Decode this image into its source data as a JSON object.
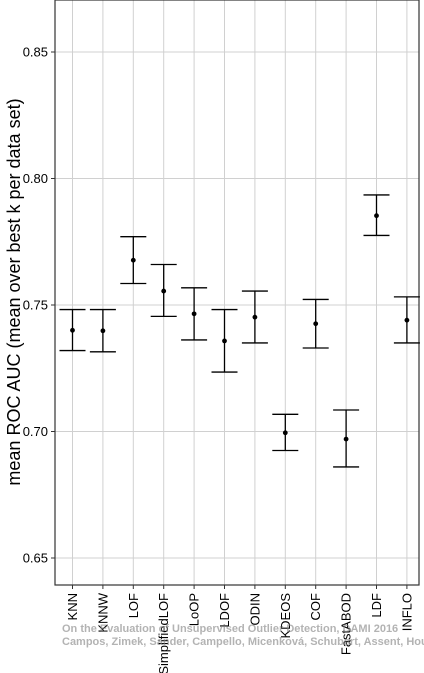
{
  "chart_data": {
    "type": "scatter",
    "ylabel": "mean ROC AUC (mean over best k per data set)",
    "xlabel": "",
    "ylim": [
      0.64,
      0.87
    ],
    "yticks": [
      0.65,
      0.7,
      0.75,
      0.8,
      0.85
    ],
    "ytick_labels": [
      "0.65",
      "0.70",
      "0.75",
      "0.80",
      "0.85"
    ],
    "grid": true,
    "categories": [
      "KNN",
      "KNNW",
      "LOF",
      "SimplifiedLOF",
      "LoOP",
      "LDOF",
      "ODIN",
      "KDEOS",
      "COF",
      "FastABOD",
      "LDF",
      "INFLO"
    ],
    "series": [
      {
        "values": [
          0.74,
          0.7398,
          0.7677,
          0.7555,
          0.7465,
          0.7358,
          0.7452,
          0.6995,
          0.7426,
          0.697,
          0.7853,
          0.744
        ],
        "lower": [
          0.732,
          0.7315,
          0.7585,
          0.7455,
          0.7362,
          0.7235,
          0.735,
          0.6925,
          0.733,
          0.686,
          0.7775,
          0.735
        ],
        "upper": [
          0.7482,
          0.7482,
          0.777,
          0.766,
          0.7568,
          0.7482,
          0.7555,
          0.7068,
          0.7522,
          0.7085,
          0.7935,
          0.7532
        ]
      }
    ]
  },
  "watermark": {
    "line1": "On the Evaluation of Unsupervised Outlier Detection, DAMI 2016",
    "line2": "Campos, Zimek, Sander, Campello, Micenková, Schubert, Assent, Houle"
  }
}
